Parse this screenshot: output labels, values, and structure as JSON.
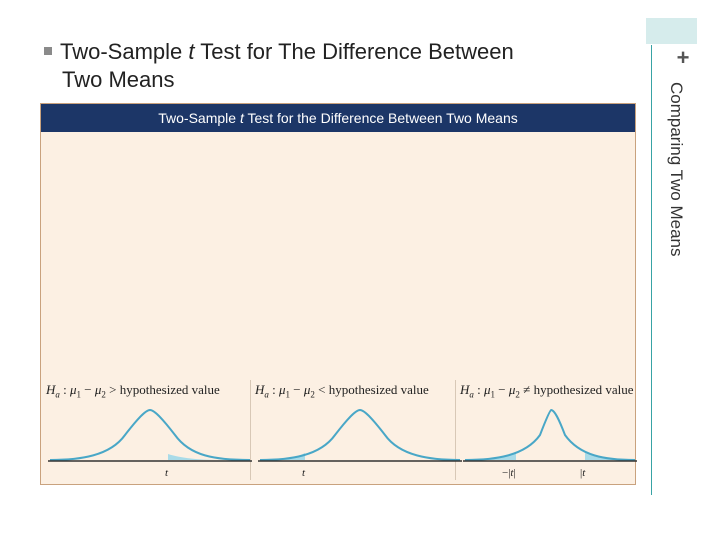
{
  "title": {
    "prefix": "Two-Sample ",
    "italic": "t",
    "suffix": " Test for The Difference Between",
    "line2": "Two Means"
  },
  "side_label": "Comparing Two Means",
  "panel": {
    "header_prefix": "Two-Sample ",
    "header_italic": "t",
    "header_suffix": " Test for the Difference Between Two Means"
  },
  "hypotheses": [
    {
      "op": ">",
      "text": "hypothesized value",
      "ticks": [
        "t"
      ]
    },
    {
      "op": "<",
      "text": "hypothesized value",
      "ticks": [
        "t"
      ]
    },
    {
      "op": "≠",
      "text": "hypothesized value",
      "ticks": [
        "−|t|",
        "|t|"
      ]
    }
  ],
  "colors": {
    "header": "#1c3667",
    "panel": "#fcf0e3",
    "curve": "#49a7c7",
    "shade": "#a9dbe8",
    "accent": "#38a3a5"
  }
}
